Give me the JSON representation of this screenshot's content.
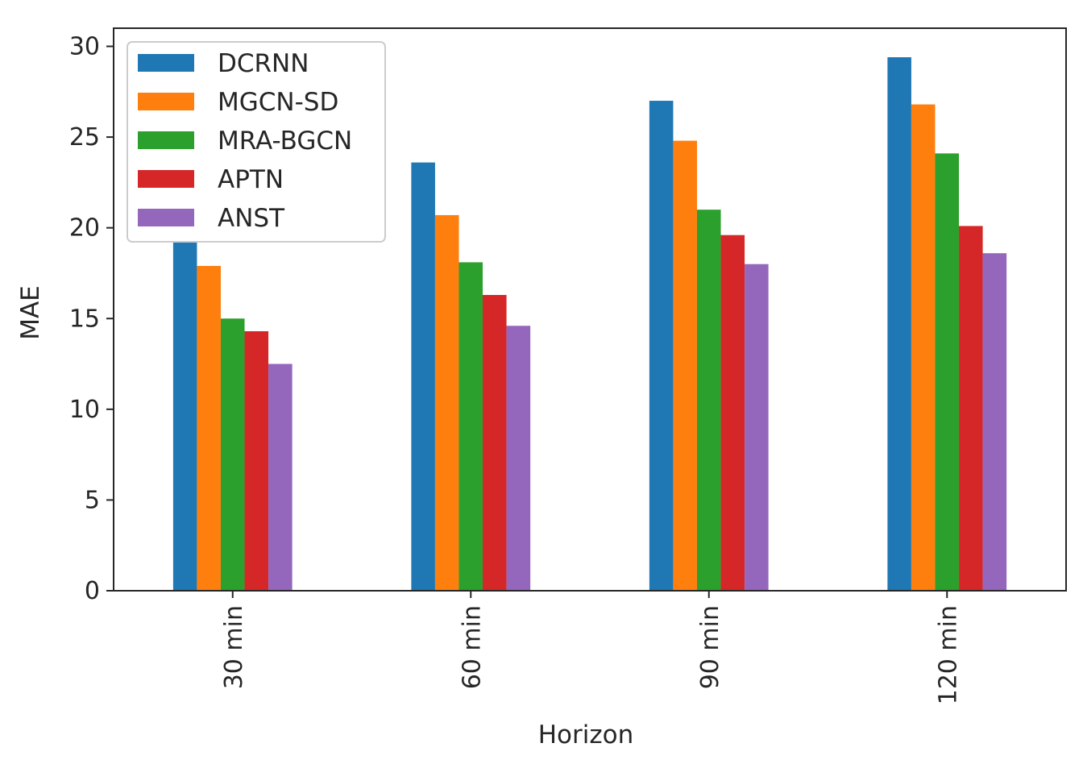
{
  "chart_data": {
    "type": "bar",
    "title": "",
    "xlabel": "Horizon",
    "ylabel": "MAE",
    "categories": [
      "30 min",
      "60 min",
      "90 min",
      "120 min"
    ],
    "ylim": [
      0,
      31
    ],
    "yticks": [
      0,
      5,
      10,
      15,
      20,
      25,
      30
    ],
    "grid": false,
    "legend_position": "upper-left",
    "series": [
      {
        "name": "DCRNN",
        "color": "#1f77b4",
        "values": [
          19.2,
          23.6,
          27.0,
          29.4
        ]
      },
      {
        "name": "MGCN-SD",
        "color": "#ff7f0e",
        "values": [
          17.9,
          20.7,
          24.8,
          26.8
        ]
      },
      {
        "name": "MRA-BGCN",
        "color": "#2ca02c",
        "values": [
          15.0,
          18.1,
          21.0,
          24.1
        ]
      },
      {
        "name": "APTN",
        "color": "#d62728",
        "values": [
          14.3,
          16.3,
          19.6,
          20.1
        ]
      },
      {
        "name": "ANST",
        "color": "#9467bd",
        "values": [
          12.5,
          14.6,
          18.0,
          18.6
        ]
      }
    ]
  }
}
